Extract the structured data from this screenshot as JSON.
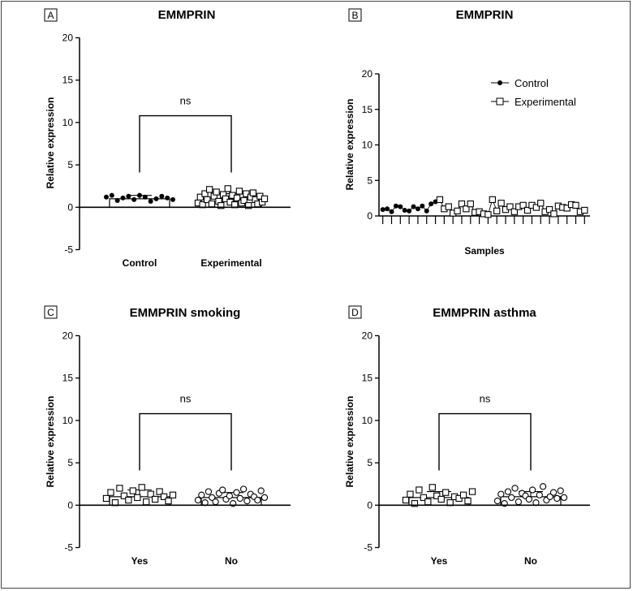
{
  "chart_data": [
    {
      "panel": "A",
      "type": "bar",
      "title": "EMMPRIN",
      "ylabel": "Relative expression",
      "xlabel": "",
      "ylim": [
        -5,
        20
      ],
      "yticks": [
        "20",
        "15",
        "10",
        "5",
        "0",
        "-5"
      ],
      "categories": [
        "Control",
        "Experimental"
      ],
      "values": [
        1.0,
        1.0
      ],
      "error_upper": [
        1.4,
        1.6
      ],
      "significance": "ns",
      "points": [
        {
          "category": "Control",
          "marker": "filled-circle",
          "values": [
            1.2,
            1.4,
            0.8,
            1.1,
            1.3,
            0.9,
            1.4,
            1.2,
            0.7,
            1.0,
            1.3,
            1.1,
            0.9
          ]
        },
        {
          "category": "Experimental",
          "marker": "open-square",
          "values": [
            0.5,
            1.2,
            0.3,
            1.6,
            0.9,
            2.1,
            0.4,
            1.3,
            1.8,
            0.7,
            0.2,
            1.5,
            1.0,
            2.2,
            0.6,
            1.4,
            0.3,
            1.1,
            1.9,
            0.5,
            0.8,
            1.6,
            0.2,
            1.2,
            1.7,
            0.9,
            0.4,
            1.3,
            0.6,
            1.0
          ]
        }
      ]
    },
    {
      "panel": "B",
      "type": "line",
      "title": "EMMPRIN",
      "ylabel": "Relative expression",
      "xlabel": "Samples",
      "ylim": [
        0,
        20
      ],
      "yticks": [
        "20",
        "15",
        "10",
        "5",
        "0"
      ],
      "legend_position": "top-right",
      "series": [
        {
          "name": "Control",
          "marker": "filled-circle",
          "values": [
            0.9,
            1.0,
            0.6,
            1.4,
            1.3,
            0.8,
            0.7,
            1.3,
            1.0,
            1.4,
            0.7,
            1.7,
            2.0
          ]
        },
        {
          "name": "Experimental",
          "marker": "open-square",
          "values": [
            2.3,
            1.0,
            1.3,
            0.4,
            0.7,
            1.7,
            1.0,
            1.7,
            0.5,
            0.6,
            0.3,
            0.2,
            2.3,
            0.7,
            1.8,
            0.9,
            1.3,
            0.6,
            1.3,
            1.5,
            0.8,
            1.5,
            1.2,
            1.8,
            0.6,
            0.9,
            0.3,
            1.4,
            1.2,
            1.1,
            1.6,
            1.5,
            0.6,
            0.8
          ]
        }
      ]
    },
    {
      "panel": "C",
      "type": "bar",
      "title": "EMMPRIN smoking",
      "ylabel": "Relative expression",
      "xlabel": "",
      "ylim": [
        -5,
        20
      ],
      "yticks": [
        "20",
        "15",
        "10",
        "5",
        "0",
        "-5"
      ],
      "categories": [
        "Yes",
        "No"
      ],
      "values": [
        1.0,
        0.9
      ],
      "error_upper": [
        1.8,
        1.5
      ],
      "significance": "ns",
      "points": [
        {
          "category": "Yes",
          "marker": "open-square",
          "values": [
            0.8,
            1.5,
            0.3,
            2.0,
            1.1,
            0.6,
            1.7,
            0.9,
            2.1,
            0.4,
            1.3,
            0.7,
            1.6,
            1.0,
            0.5,
            1.2
          ]
        },
        {
          "category": "No",
          "marker": "open-circle",
          "values": [
            0.6,
            1.2,
            0.3,
            1.6,
            0.9,
            0.4,
            1.4,
            1.8,
            0.7,
            1.1,
            0.2,
            1.5,
            0.8,
            1.9,
            0.5,
            1.3,
            1.0,
            0.6,
            1.7,
            0.9
          ]
        }
      ]
    },
    {
      "panel": "D",
      "type": "bar",
      "title": "EMMPRIN asthma",
      "ylabel": "Relative expression",
      "xlabel": "",
      "ylim": [
        -5,
        20
      ],
      "yticks": [
        "20",
        "15",
        "10",
        "5",
        "0",
        "-5"
      ],
      "categories": [
        "Yes",
        "No"
      ],
      "values": [
        0.9,
        1.0
      ],
      "error_upper": [
        1.6,
        1.6
      ],
      "significance": "ns",
      "points": [
        {
          "category": "Yes",
          "marker": "open-square",
          "values": [
            0.6,
            1.3,
            0.2,
            1.8,
            0.9,
            0.4,
            2.1,
            1.1,
            0.7,
            1.5,
            0.3,
            1.0,
            0.8,
            1.2,
            0.5,
            1.6
          ]
        },
        {
          "category": "No",
          "marker": "open-circle",
          "values": [
            0.5,
            1.3,
            0.2,
            1.6,
            0.9,
            2.0,
            0.4,
            1.4,
            1.1,
            0.7,
            1.8,
            0.3,
            1.2,
            2.2,
            0.6,
            1.0,
            1.5,
            0.8,
            1.7,
            0.9
          ]
        }
      ]
    }
  ]
}
